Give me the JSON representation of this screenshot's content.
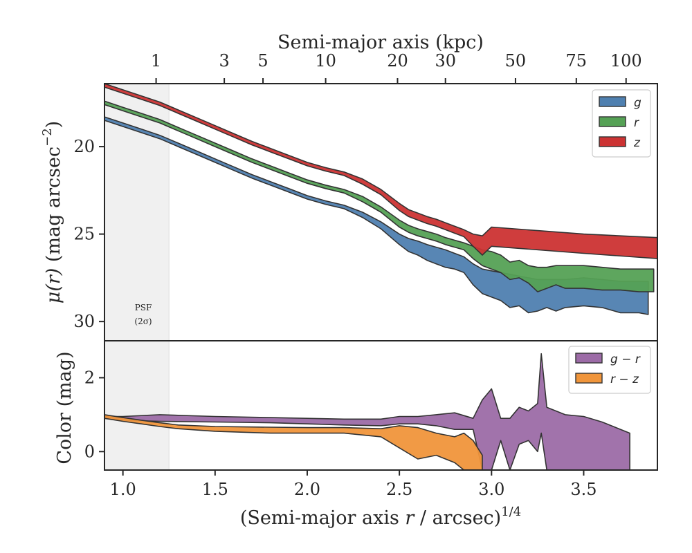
{
  "chart_data": [
    {
      "type": "area",
      "panel": "surface-brightness",
      "ylabel_main": "μ(r)",
      "ylabel_unit": "(mag arcsec",
      "ylabel_exp": "−2",
      "ylabel_close": ")",
      "xlim": [
        0.9,
        3.9
      ],
      "ylim": [
        31.1,
        16.4
      ],
      "y_inverted": true,
      "yticks": [
        20,
        25,
        30
      ],
      "top_axis": {
        "label": "Semi-major axis (kpc)",
        "ticks": [
          {
            "label": "1",
            "x": 1.18
          },
          {
            "label": "3",
            "x": 1.55
          },
          {
            "label": "5",
            "x": 1.76
          },
          {
            "label": "10",
            "x": 2.1
          },
          {
            "label": "20",
            "x": 2.49
          },
          {
            "label": "30",
            "x": 2.75
          },
          {
            "label": "50",
            "x": 3.13
          },
          {
            "label": "75",
            "x": 3.46
          },
          {
            "label": "100",
            "x": 3.73
          }
        ]
      },
      "shaded_region": {
        "x": [
          0.9,
          1.25
        ],
        "label_line1": "PSF",
        "label_line2": "(2σ)"
      },
      "legend": {
        "position": "top-right"
      },
      "series": [
        {
          "name": "g",
          "color": "#4f80b0",
          "x": [
            0.9,
            1.0,
            1.1,
            1.2,
            1.3,
            1.4,
            1.5,
            1.6,
            1.7,
            1.8,
            1.9,
            2.0,
            2.1,
            2.2,
            2.3,
            2.4,
            2.5,
            2.55,
            2.6,
            2.65,
            2.7,
            2.75,
            2.8,
            2.85,
            2.9,
            2.95,
            3.0,
            3.05,
            3.1,
            3.15,
            3.2,
            3.25,
            3.3,
            3.35,
            3.4,
            3.5,
            3.6,
            3.7,
            3.8,
            3.85
          ],
          "y": [
            18.4,
            18.75,
            19.1,
            19.45,
            19.9,
            20.35,
            20.8,
            21.25,
            21.7,
            22.1,
            22.5,
            22.9,
            23.2,
            23.45,
            23.9,
            24.5,
            25.3,
            25.6,
            25.8,
            26.0,
            26.2,
            26.35,
            26.5,
            26.65,
            26.9,
            27.3,
            27.4,
            27.6,
            27.8,
            27.9,
            28.1,
            28.2,
            28.3,
            28.35,
            28.3,
            28.4,
            28.5,
            28.7,
            28.9,
            29.0
          ],
          "y_upper": [
            18.3,
            18.65,
            19.0,
            19.35,
            19.8,
            20.25,
            20.7,
            21.15,
            21.6,
            22.0,
            22.4,
            22.8,
            23.1,
            23.35,
            23.75,
            24.3,
            25.0,
            25.25,
            25.4,
            25.6,
            25.75,
            25.9,
            26.1,
            26.3,
            26.7,
            27.0,
            27.1,
            27.2,
            27.3,
            27.4,
            27.5,
            27.6,
            27.6,
            27.6,
            27.6,
            27.5,
            27.6,
            27.7,
            27.7,
            27.7
          ],
          "y_lower": [
            18.5,
            18.85,
            19.2,
            19.55,
            20.0,
            20.45,
            20.9,
            21.35,
            21.8,
            22.2,
            22.6,
            23.0,
            23.3,
            23.55,
            24.05,
            24.7,
            25.6,
            26.0,
            26.2,
            26.5,
            26.7,
            26.9,
            27.0,
            27.2,
            27.9,
            28.4,
            28.6,
            28.8,
            29.2,
            29.1,
            29.5,
            29.4,
            29.2,
            29.4,
            29.2,
            29.1,
            29.2,
            29.5,
            29.5,
            29.6
          ]
        },
        {
          "name": "r",
          "color": "#55a155",
          "x": [
            0.9,
            1.0,
            1.1,
            1.2,
            1.3,
            1.4,
            1.5,
            1.6,
            1.7,
            1.8,
            1.9,
            2.0,
            2.1,
            2.2,
            2.3,
            2.4,
            2.5,
            2.55,
            2.6,
            2.65,
            2.7,
            2.75,
            2.8,
            2.85,
            2.9,
            2.95,
            3.0,
            3.05,
            3.1,
            3.15,
            3.2,
            3.25,
            3.3,
            3.35,
            3.4,
            3.5,
            3.6,
            3.7,
            3.8,
            3.88
          ],
          "y": [
            17.5,
            17.85,
            18.2,
            18.55,
            19.0,
            19.45,
            19.9,
            20.35,
            20.8,
            21.2,
            21.6,
            22.0,
            22.3,
            22.55,
            23.0,
            23.6,
            24.4,
            24.7,
            24.9,
            25.05,
            25.2,
            25.4,
            25.55,
            25.7,
            25.95,
            26.25,
            26.5,
            26.7,
            26.9,
            27.05,
            27.2,
            27.3,
            27.35,
            27.3,
            27.3,
            27.3,
            27.4,
            27.5,
            27.6,
            27.7
          ],
          "y_upper": [
            17.4,
            17.75,
            18.1,
            18.45,
            18.9,
            19.35,
            19.8,
            20.25,
            20.7,
            21.1,
            21.5,
            21.9,
            22.2,
            22.45,
            22.85,
            23.45,
            24.2,
            24.5,
            24.7,
            24.85,
            25.0,
            25.2,
            25.35,
            25.5,
            25.7,
            25.9,
            26.0,
            26.2,
            26.6,
            26.5,
            26.8,
            26.9,
            26.9,
            26.8,
            26.8,
            26.8,
            26.9,
            27.0,
            27.0,
            27.0
          ],
          "y_lower": [
            17.6,
            17.95,
            18.3,
            18.65,
            19.1,
            19.55,
            20.0,
            20.45,
            20.9,
            21.3,
            21.7,
            22.1,
            22.4,
            22.65,
            23.15,
            23.75,
            24.6,
            24.9,
            25.1,
            25.25,
            25.4,
            25.6,
            25.75,
            25.9,
            26.4,
            26.8,
            27.0,
            27.2,
            27.6,
            27.5,
            27.8,
            28.3,
            28.1,
            27.9,
            28.1,
            28.1,
            28.2,
            28.2,
            28.3,
            28.3
          ]
        },
        {
          "name": "z",
          "color": "#cc3333",
          "x": [
            0.9,
            1.0,
            1.1,
            1.2,
            1.3,
            1.4,
            1.5,
            1.6,
            1.7,
            1.8,
            1.9,
            2.0,
            2.1,
            2.2,
            2.3,
            2.4,
            2.5,
            2.55,
            2.6,
            2.65,
            2.7,
            2.75,
            2.8,
            2.85,
            2.9,
            2.95,
            3.0,
            3.5,
            3.9
          ],
          "y": [
            16.5,
            16.85,
            17.2,
            17.55,
            18.0,
            18.45,
            18.9,
            19.35,
            19.8,
            20.2,
            20.6,
            21.0,
            21.3,
            21.55,
            22.0,
            22.6,
            23.45,
            23.8,
            24.0,
            24.2,
            24.35,
            24.55,
            24.75,
            24.95,
            25.3,
            25.6,
            25.2,
            25.6,
            25.8
          ],
          "y_upper": [
            16.4,
            16.75,
            17.1,
            17.45,
            17.9,
            18.35,
            18.8,
            19.25,
            19.7,
            20.1,
            20.5,
            20.9,
            21.2,
            21.45,
            21.85,
            22.45,
            23.25,
            23.6,
            23.8,
            24.0,
            24.15,
            24.35,
            24.55,
            24.75,
            25.0,
            25.1,
            24.6,
            25.0,
            25.2
          ],
          "y_lower": [
            16.6,
            16.95,
            17.3,
            17.65,
            18.1,
            18.55,
            19.0,
            19.45,
            19.9,
            20.3,
            20.7,
            21.1,
            21.4,
            21.65,
            22.15,
            22.75,
            23.65,
            24.0,
            24.2,
            24.4,
            24.55,
            24.75,
            24.95,
            25.15,
            25.7,
            26.2,
            25.7,
            26.1,
            26.4
          ]
        }
      ]
    },
    {
      "type": "area",
      "panel": "color",
      "xlabel_main": "(Semi-major axis ",
      "xlabel_r": "r",
      "xlabel_unit": " / arcsec)",
      "xlabel_exp": "1/4",
      "ylabel": "Color (mag)",
      "xlim": [
        0.9,
        3.9
      ],
      "ylim": [
        -0.5,
        3.0
      ],
      "xticks": [
        1.0,
        1.5,
        2.0,
        2.5,
        3.0,
        3.5
      ],
      "xtick_labels": [
        "1.0",
        "1.5",
        "2.0",
        "2.5",
        "3.0",
        "3.5"
      ],
      "yticks": [
        0,
        2
      ],
      "shaded_region": {
        "x": [
          0.9,
          1.25
        ]
      },
      "legend": {
        "position": "top-right"
      },
      "series": [
        {
          "name": "g − r",
          "color": "#9c6ba6",
          "x": [
            0.9,
            1.0,
            1.2,
            1.5,
            1.8,
            2.0,
            2.2,
            2.4,
            2.5,
            2.6,
            2.7,
            2.8,
            2.9,
            2.95,
            3.0,
            3.05,
            3.1,
            3.15,
            3.2,
            3.25,
            3.27,
            3.3,
            3.4,
            3.5,
            3.6,
            3.75
          ],
          "y_upper": [
            0.95,
            0.95,
            1.0,
            0.95,
            0.92,
            0.9,
            0.88,
            0.88,
            0.95,
            0.95,
            1.0,
            1.05,
            0.9,
            1.4,
            1.7,
            0.9,
            0.9,
            1.2,
            1.1,
            1.3,
            2.65,
            1.2,
            1.0,
            0.95,
            0.8,
            0.5
          ],
          "y_lower": [
            0.9,
            0.85,
            0.82,
            0.8,
            0.78,
            0.75,
            0.72,
            0.7,
            0.75,
            0.75,
            0.7,
            0.6,
            0.6,
            -0.5,
            -0.5,
            0.3,
            -0.5,
            0.2,
            0.3,
            0.0,
            0.5,
            -0.5,
            -0.5,
            -0.5,
            -0.5,
            -0.5
          ]
        },
        {
          "name": "r − z",
          "color": "#f0953b",
          "x": [
            0.9,
            1.0,
            1.1,
            1.2,
            1.3,
            1.5,
            1.8,
            2.0,
            2.2,
            2.4,
            2.5,
            2.6,
            2.7,
            2.8,
            2.85,
            2.9,
            2.95
          ],
          "y_upper": [
            1.0,
            0.92,
            0.85,
            0.78,
            0.72,
            0.68,
            0.66,
            0.65,
            0.65,
            0.62,
            0.7,
            0.65,
            0.5,
            0.4,
            0.5,
            0.3,
            -0.1
          ],
          "y_lower": [
            0.9,
            0.82,
            0.75,
            0.68,
            0.62,
            0.55,
            0.5,
            0.5,
            0.5,
            0.4,
            0.1,
            -0.2,
            -0.1,
            -0.3,
            -0.5,
            -0.5,
            -0.5
          ]
        }
      ]
    }
  ]
}
